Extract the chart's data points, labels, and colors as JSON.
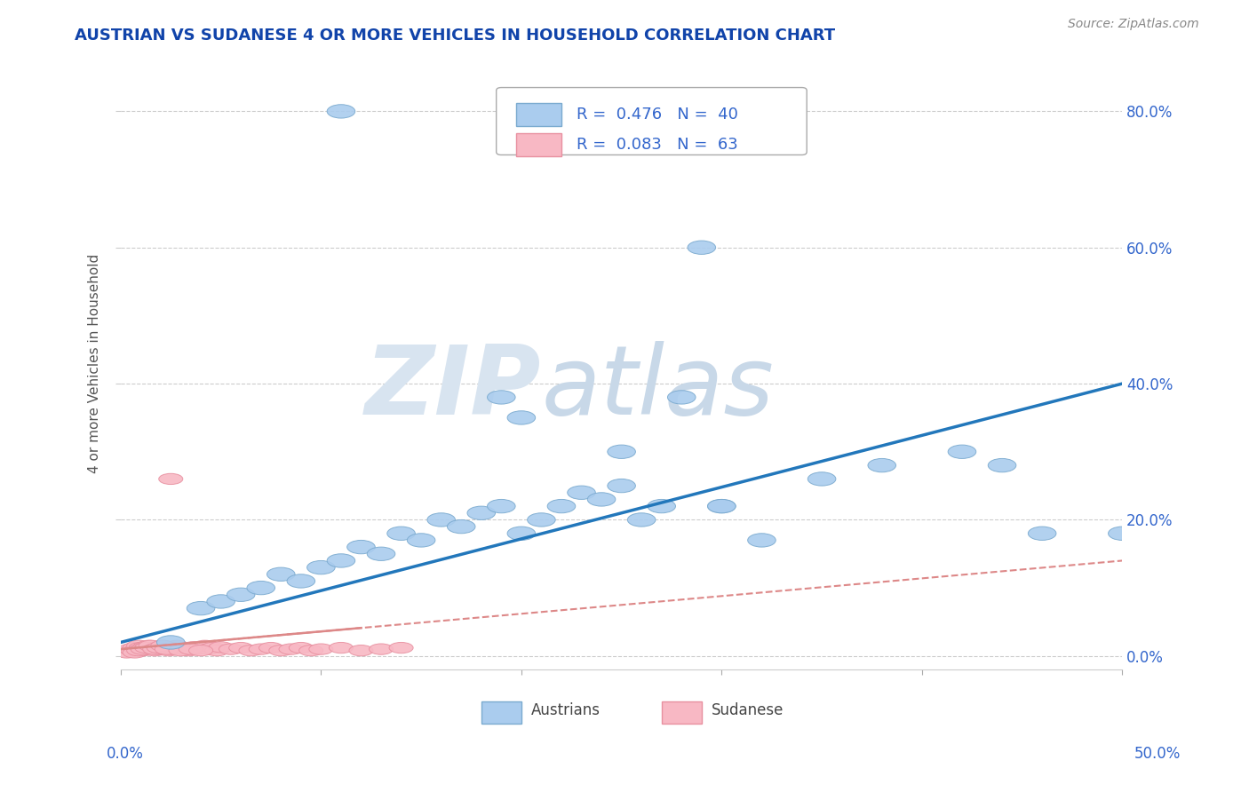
{
  "title": "AUSTRIAN VS SUDANESE 4 OR MORE VEHICLES IN HOUSEHOLD CORRELATION CHART",
  "source": "Source: ZipAtlas.com",
  "ylabel": "4 or more Vehicles in Household",
  "ytick_labels": [
    "0.0%",
    "20.0%",
    "40.0%",
    "60.0%",
    "80.0%"
  ],
  "ytick_values": [
    0.0,
    0.2,
    0.4,
    0.6,
    0.8
  ],
  "xlim": [
    0.0,
    0.5
  ],
  "ylim": [
    -0.02,
    0.88
  ],
  "austrian_color": "#aaccee",
  "austrian_edge": "#7aaacf",
  "sudanese_color": "#f8b8c4",
  "sudanese_edge": "#e890a0",
  "trend_austrian_color": "#2277bb",
  "trend_sudanese_color": "#dd8888",
  "title_color": "#1144aa",
  "source_color": "#888888",
  "legend_text_color": "#3366cc",
  "watermark_zip_color": "#d8e4f0",
  "watermark_atlas_color": "#c8d8e8",
  "austrians_x": [
    0.025,
    0.04,
    0.05,
    0.06,
    0.07,
    0.08,
    0.09,
    0.1,
    0.11,
    0.12,
    0.13,
    0.14,
    0.15,
    0.16,
    0.17,
    0.18,
    0.19,
    0.2,
    0.21,
    0.22,
    0.23,
    0.24,
    0.25,
    0.26,
    0.27,
    0.28,
    0.3,
    0.32,
    0.35,
    0.38,
    0.42,
    0.44,
    0.46,
    0.2,
    0.25,
    0.3,
    0.5,
    0.29,
    0.19,
    0.11
  ],
  "austrians_y": [
    0.02,
    0.07,
    0.08,
    0.09,
    0.1,
    0.12,
    0.11,
    0.13,
    0.14,
    0.16,
    0.15,
    0.18,
    0.17,
    0.2,
    0.19,
    0.21,
    0.22,
    0.18,
    0.2,
    0.22,
    0.24,
    0.23,
    0.25,
    0.2,
    0.22,
    0.38,
    0.22,
    0.17,
    0.26,
    0.28,
    0.3,
    0.28,
    0.18,
    0.35,
    0.3,
    0.22,
    0.18,
    0.6,
    0.38,
    0.8
  ],
  "sudanese_x": [
    0.003,
    0.005,
    0.006,
    0.007,
    0.008,
    0.009,
    0.01,
    0.011,
    0.012,
    0.013,
    0.014,
    0.015,
    0.016,
    0.017,
    0.018,
    0.019,
    0.02,
    0.021,
    0.022,
    0.023,
    0.024,
    0.025,
    0.026,
    0.027,
    0.028,
    0.03,
    0.032,
    0.034,
    0.036,
    0.038,
    0.04,
    0.042,
    0.044,
    0.046,
    0.048,
    0.05,
    0.055,
    0.06,
    0.065,
    0.07,
    0.075,
    0.08,
    0.085,
    0.09,
    0.095,
    0.1,
    0.11,
    0.12,
    0.13,
    0.14,
    0.007,
    0.009,
    0.011,
    0.013,
    0.015,
    0.017,
    0.019,
    0.021,
    0.023,
    0.03,
    0.035,
    0.04,
    0.025
  ],
  "sudanese_y": [
    0.005,
    0.01,
    0.008,
    0.012,
    0.01,
    0.015,
    0.012,
    0.008,
    0.013,
    0.01,
    0.015,
    0.012,
    0.01,
    0.008,
    0.013,
    0.01,
    0.012,
    0.015,
    0.01,
    0.012,
    0.008,
    0.013,
    0.01,
    0.012,
    0.015,
    0.01,
    0.012,
    0.008,
    0.013,
    0.01,
    0.012,
    0.015,
    0.01,
    0.012,
    0.008,
    0.013,
    0.01,
    0.012,
    0.008,
    0.01,
    0.012,
    0.008,
    0.01,
    0.012,
    0.008,
    0.01,
    0.012,
    0.008,
    0.01,
    0.012,
    0.005,
    0.008,
    0.01,
    0.012,
    0.015,
    0.01,
    0.012,
    0.015,
    0.01,
    0.008,
    0.01,
    0.008,
    0.26
  ]
}
